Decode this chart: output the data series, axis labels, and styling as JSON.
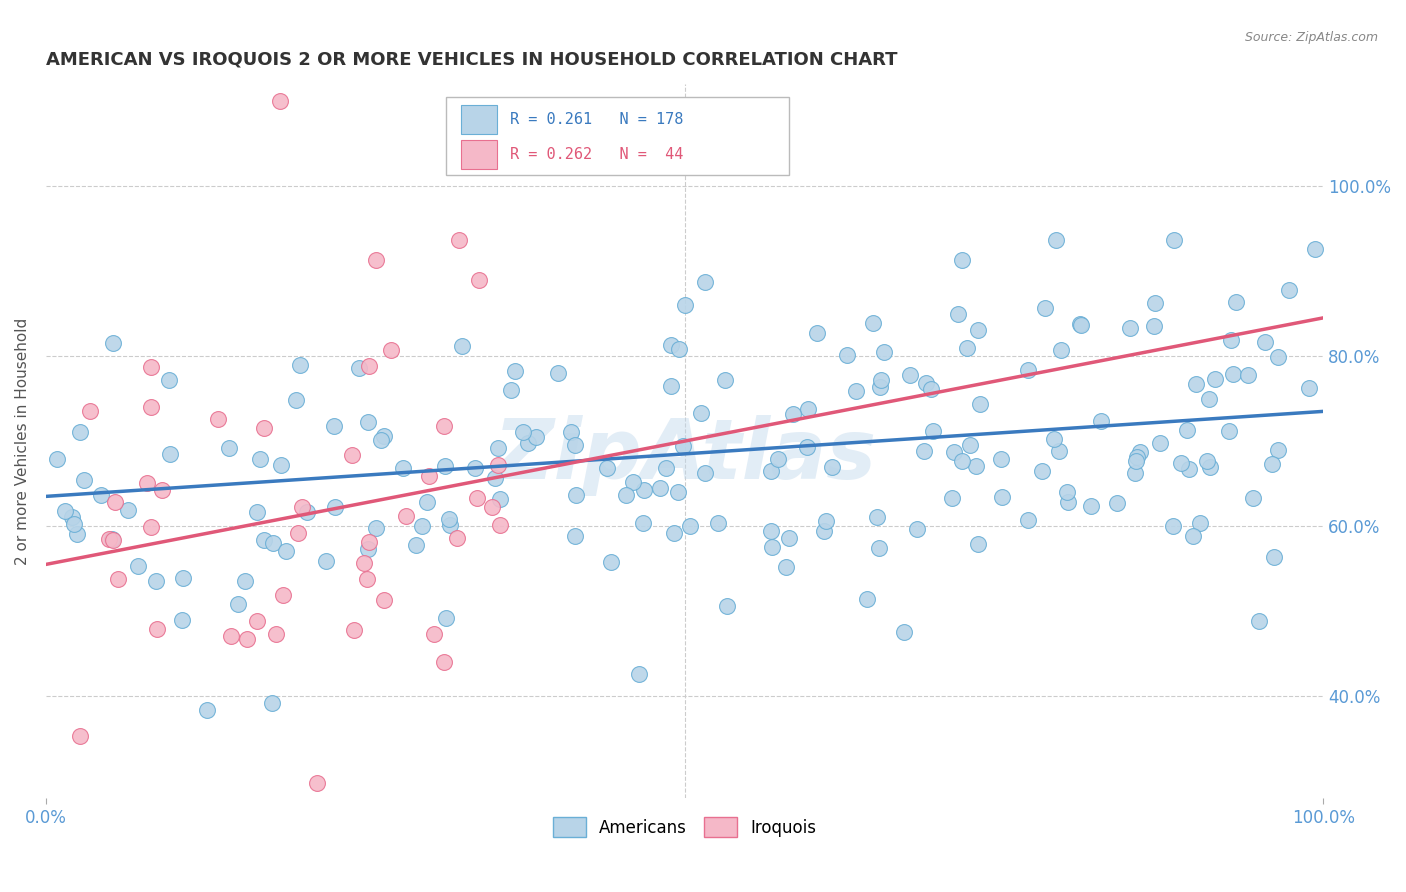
{
  "title": "AMERICAN VS IROQUOIS 2 OR MORE VEHICLES IN HOUSEHOLD CORRELATION CHART",
  "source": "Source: ZipAtlas.com",
  "ylabel": "2 or more Vehicles in Household",
  "ytick_vals": [
    0.4,
    0.6,
    0.8,
    1.0
  ],
  "ytick_labels": [
    "40.0%",
    "60.0%",
    "80.0%",
    "100.0%"
  ],
  "xtick_labels": [
    "0.0%",
    "100.0%"
  ],
  "legend_line1": "R = 0.261   N = 178",
  "legend_line2": "R = 0.262   N =  44",
  "legend_labels": [
    "Americans",
    "Iroquois"
  ],
  "american_R": 0.261,
  "american_N": 178,
  "iroquois_R": 0.262,
  "iroquois_N": 44,
  "american_fill_color": "#b8d4e8",
  "iroquois_fill_color": "#f5b8c8",
  "american_edge_color": "#6aafd6",
  "iroquois_edge_color": "#e87090",
  "american_line_color": "#3a7abf",
  "iroquois_line_color": "#e05878",
  "watermark": "ZipAtlas",
  "background_color": "#ffffff",
  "grid_color": "#cccccc",
  "title_color": "#333333",
  "title_fontsize": 13,
  "tick_color": "#5a9ad5",
  "ylabel_color": "#555555",
  "source_color": "#888888",
  "ylim": [
    0.28,
    1.12
  ],
  "xlim": [
    0.0,
    1.0
  ],
  "am_line_x0": 0.0,
  "am_line_y0": 0.635,
  "am_line_x1": 1.0,
  "am_line_y1": 0.735,
  "iro_line_x0": 0.0,
  "iro_line_y0": 0.555,
  "iro_line_x1": 1.0,
  "iro_line_y1": 0.845
}
